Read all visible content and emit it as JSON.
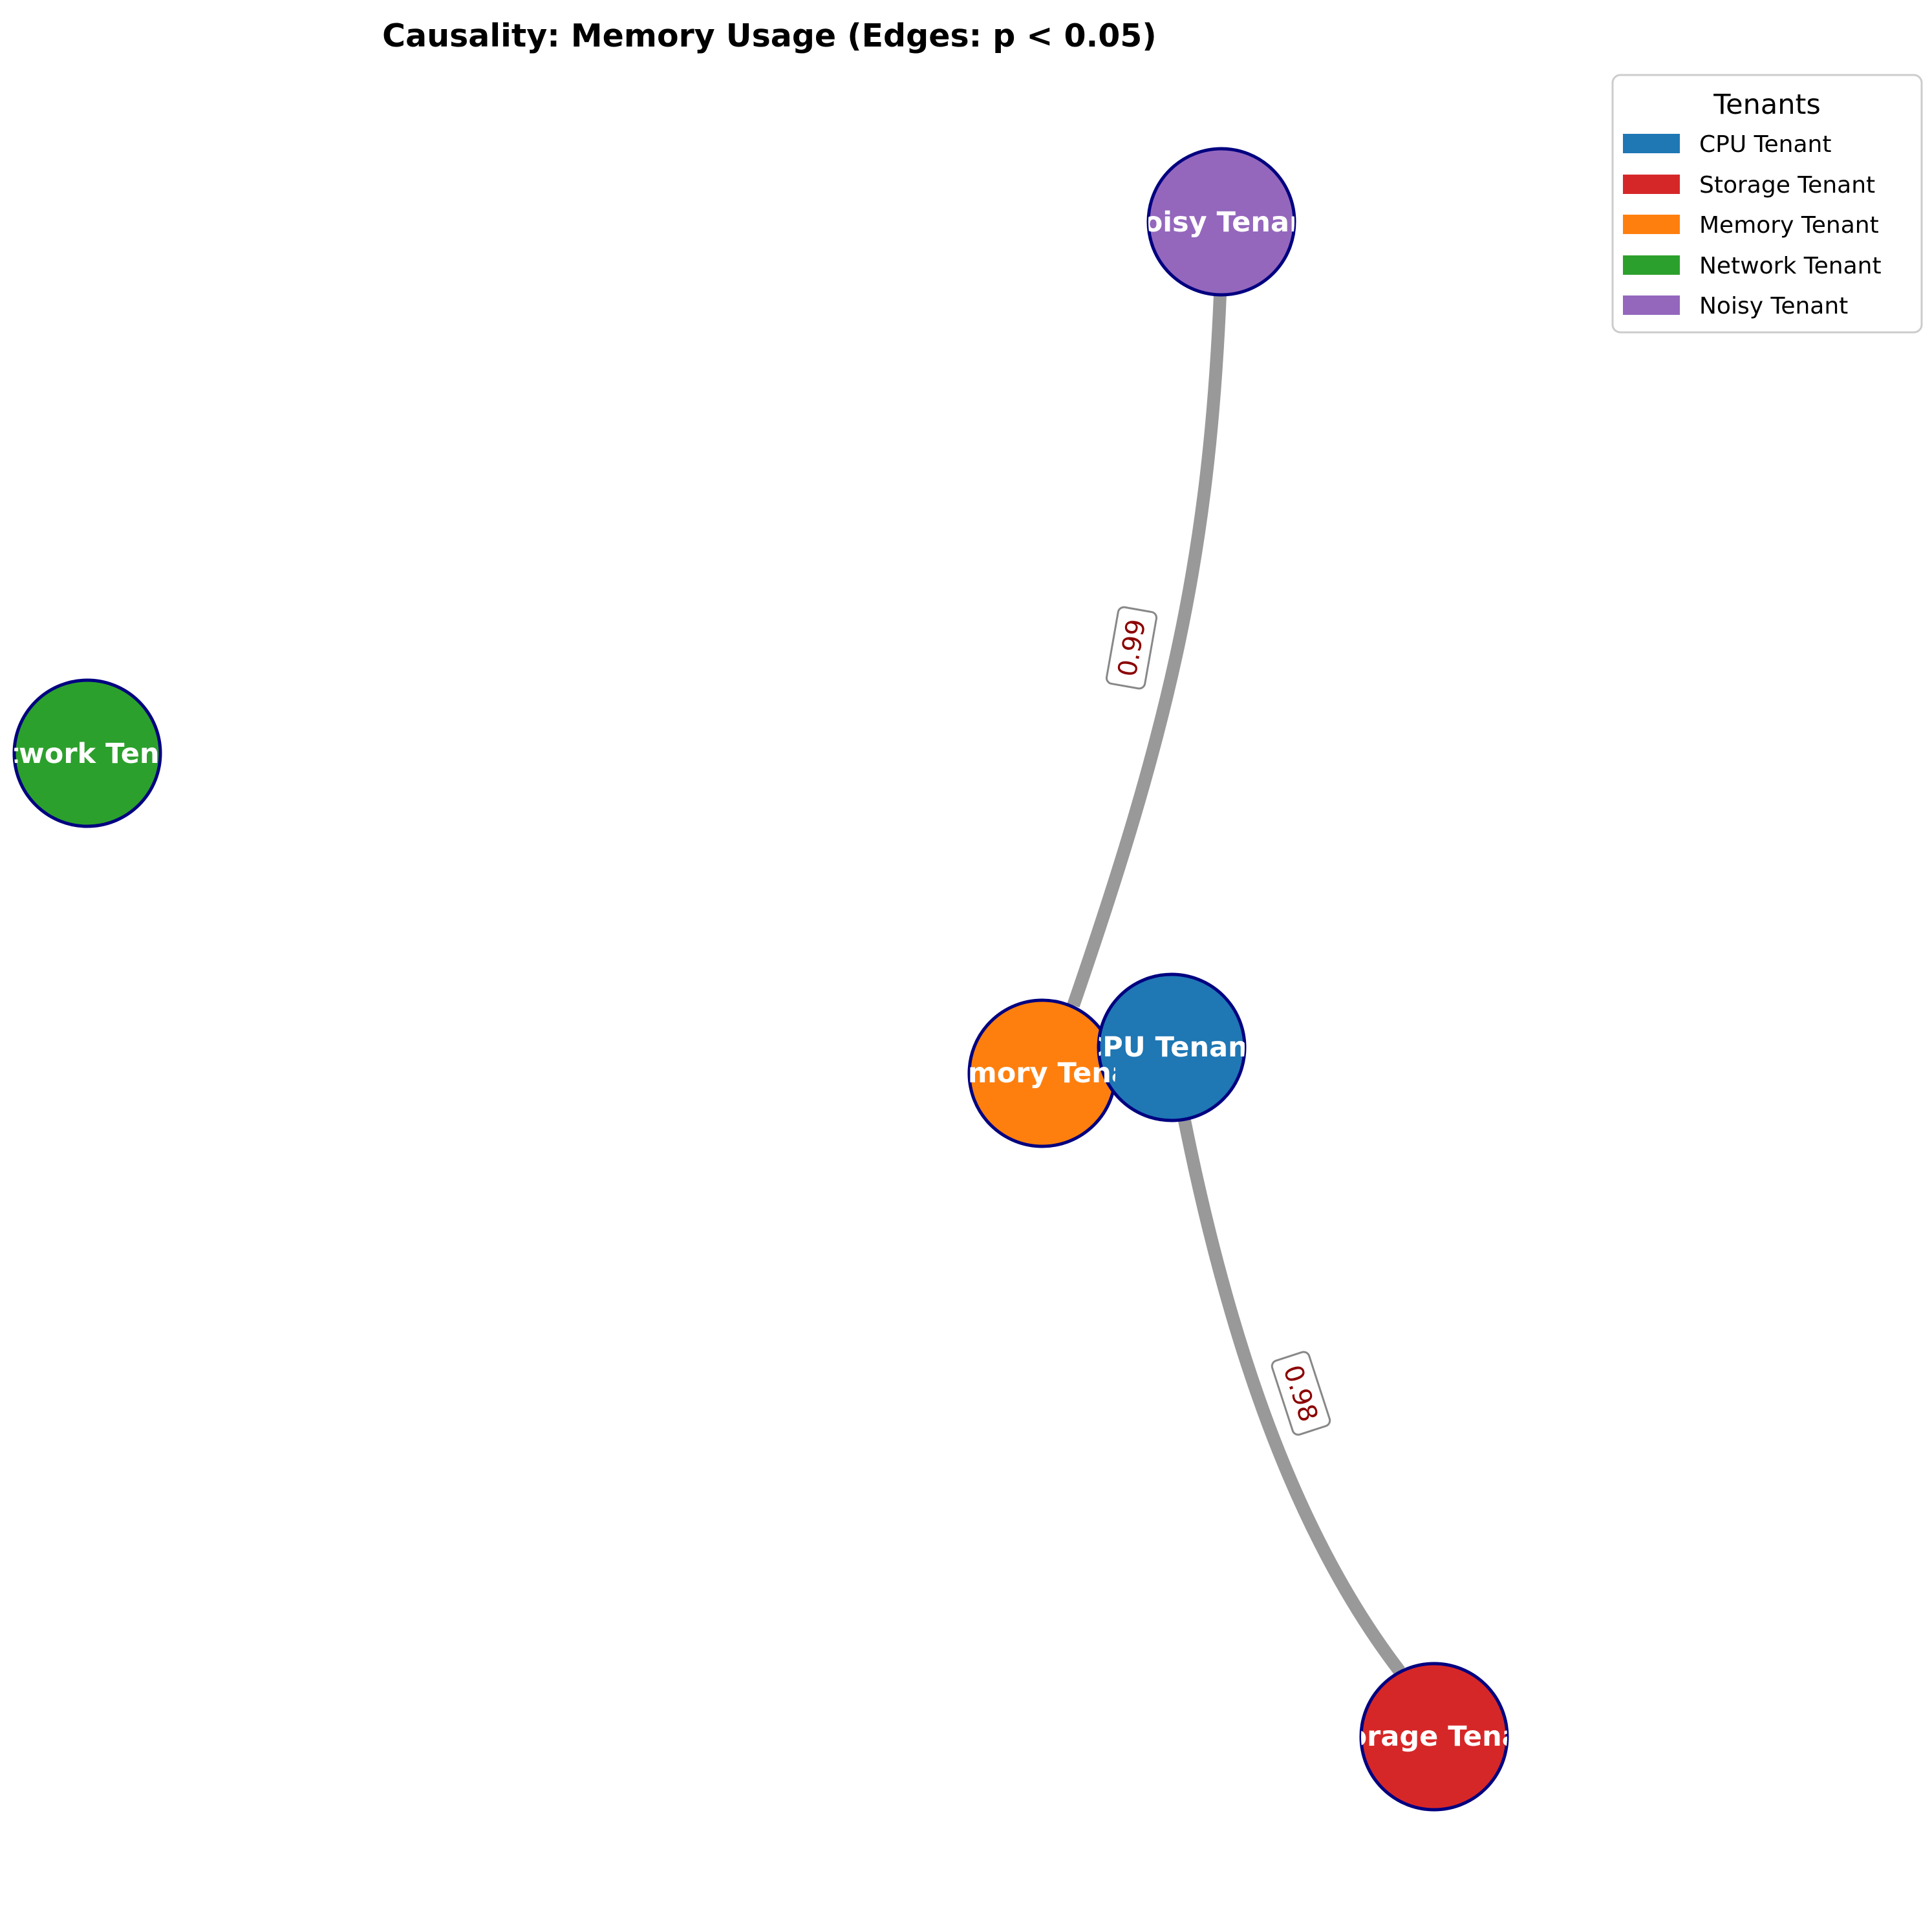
{
  "title": "Causality: Memory Usage (Edges: p < 0.05)",
  "colors": {
    "node_outline": "#000080",
    "edge": "#999999",
    "edge_label_text": "#8b0000",
    "edge_label_box": "#888888"
  },
  "nodes": [
    {
      "id": "cpu",
      "label": "CPU Tenant",
      "color": "#1f77b4"
    },
    {
      "id": "storage",
      "label": "Storage Tenant",
      "color": "#d62728"
    },
    {
      "id": "memory",
      "label": "Memory Tenant",
      "color": "#ff7f0e"
    },
    {
      "id": "network",
      "label": "Network Tenant",
      "color": "#2ca02c"
    },
    {
      "id": "noisy",
      "label": "Noisy Tenant",
      "color": "#9467bd"
    }
  ],
  "edges": [
    {
      "from": "noisy",
      "to": "memory",
      "label": "0.99"
    },
    {
      "from": "cpu",
      "to": "storage",
      "label": "0.98"
    }
  ],
  "legend": {
    "title": "Tenants",
    "items": [
      {
        "label": "CPU Tenant",
        "color": "#1f77b4"
      },
      {
        "label": "Storage Tenant",
        "color": "#d62728"
      },
      {
        "label": "Memory Tenant",
        "color": "#ff7f0e"
      },
      {
        "label": "Network Tenant",
        "color": "#2ca02c"
      },
      {
        "label": "Noisy Tenant",
        "color": "#9467bd"
      }
    ]
  }
}
